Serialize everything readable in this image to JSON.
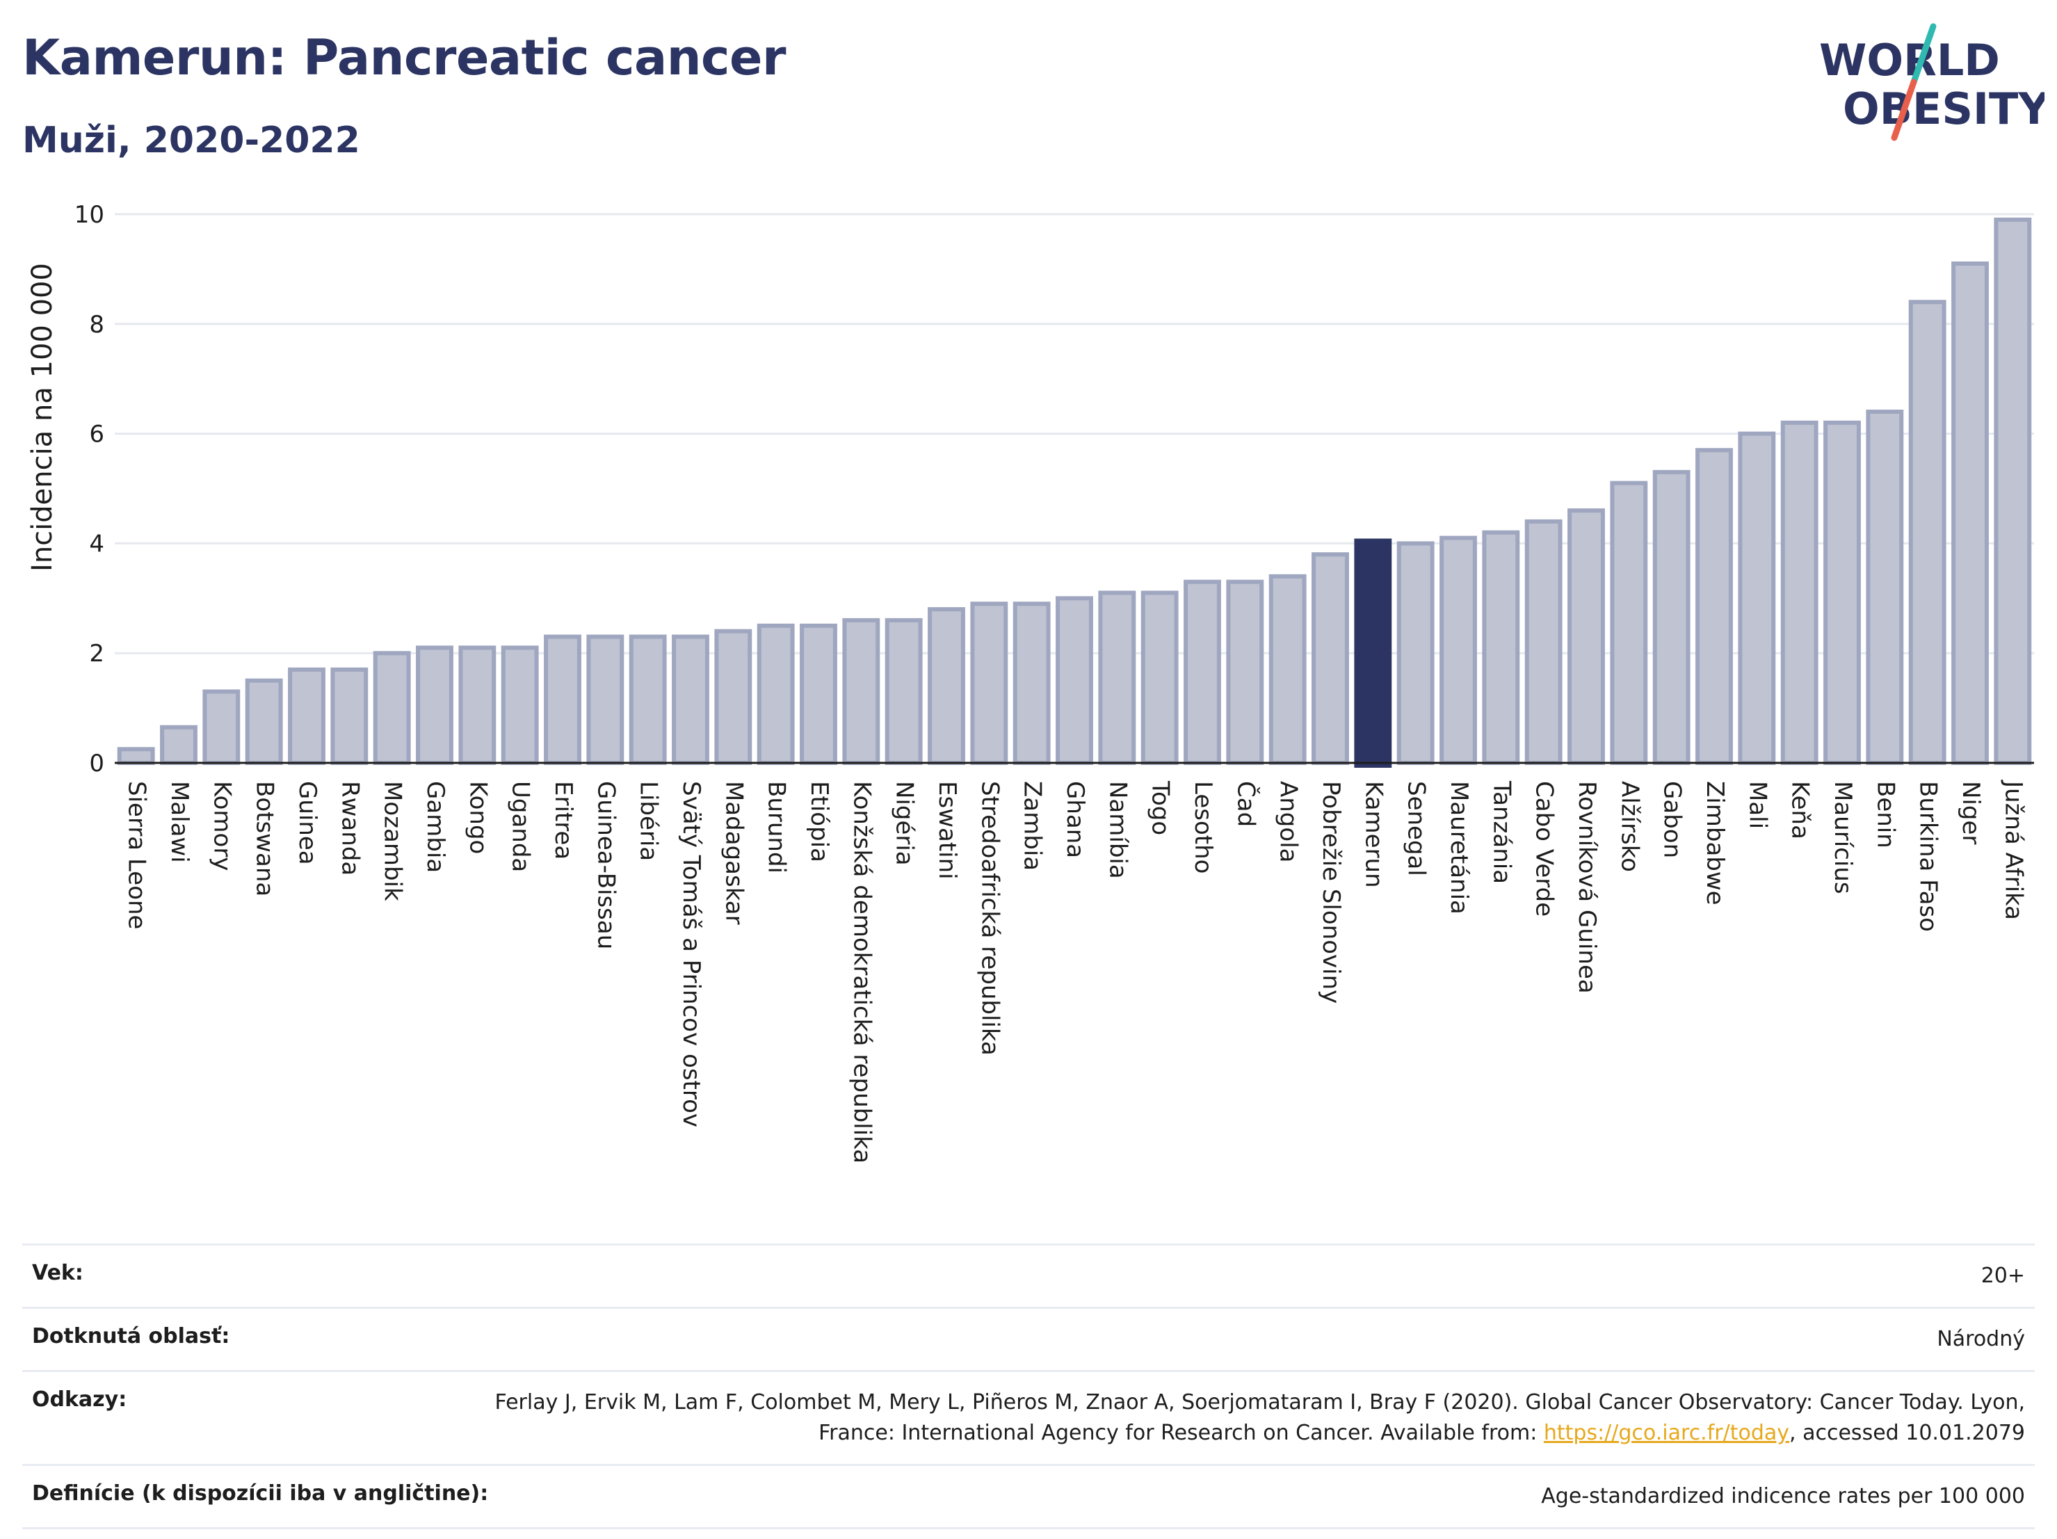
{
  "header": {
    "title": "Kamerun: Pancreatic cancer",
    "subtitle": "Muži, 2020-2022"
  },
  "logo": {
    "line1": "WORLD",
    "line2": "OBESITY",
    "accent_teal": "#2fb9b0",
    "accent_red": "#e8604c",
    "text_color": "#2b3462"
  },
  "colors": {
    "bar_default": "#bfc3d2",
    "bar_default_stroke": "#9fa6bf",
    "bar_highlight": "#2b3462",
    "grid": "#e6e8ef",
    "axis": "#1d1d1d"
  },
  "chart_data": {
    "type": "bar",
    "ylabel": "Incidencia na 100 000",
    "ylim": [
      0,
      10
    ],
    "yticks": [
      0,
      2,
      4,
      6,
      8,
      10
    ],
    "grid": true,
    "highlight": "Kamerun",
    "categories": [
      "Sierra Leone",
      "Malawi",
      "Komory",
      "Botswana",
      "Guinea",
      "Rwanda",
      "Mozambik",
      "Gambia",
      "Kongo",
      "Uganda",
      "Eritrea",
      "Guinea-Bissau",
      "Libéria",
      "Svätý Tomáš a Princov ostrov",
      "Madagaskar",
      "Burundi",
      "Etiópia",
      "Konžská demokratická republika",
      "Nigéria",
      "Eswatini",
      "Stredoafrická republika",
      "Zambia",
      "Ghana",
      "Namíbia",
      "Togo",
      "Lesotho",
      "Čad",
      "Angola",
      "Pobrežie Slonoviny",
      "Kamerun",
      "Senegal",
      "Mauretánia",
      "Tanzánia",
      "Cabo Verde",
      "Rovníková Guinea",
      "Alžírsko",
      "Gabon",
      "Zimbabwe",
      "Mali",
      "Keňa",
      "Maurícius",
      "Benin",
      "Burkina Faso",
      "Niger",
      "Južná Afrika"
    ],
    "values": [
      0.25,
      0.65,
      1.3,
      1.5,
      1.7,
      1.7,
      2.0,
      2.1,
      2.1,
      2.1,
      2.3,
      2.3,
      2.3,
      2.3,
      2.4,
      2.5,
      2.5,
      2.6,
      2.6,
      2.8,
      2.9,
      2.9,
      3.0,
      3.1,
      3.1,
      3.3,
      3.3,
      3.4,
      3.8,
      4.05,
      4.0,
      4.1,
      4.2,
      4.4,
      4.6,
      5.1,
      5.3,
      5.7,
      6.0,
      6.2,
      6.2,
      6.4,
      8.4,
      9.1,
      9.9
    ]
  },
  "meta": {
    "age_label": "Vek:",
    "age_value": "20+",
    "area_label": "Dotknutá oblasť:",
    "area_value": "Národný",
    "refs_label": "Odkazy:",
    "refs_text": "Ferlay J, Ervik M, Lam F, Colombet M, Mery L, Piñeros M, Znaor A, Soerjomataram I, Bray F (2020). Global Cancer Observatory: Cancer Today. Lyon, France: International Agency for Research on Cancer. Available from: ",
    "refs_link": "https://gco.iarc.fr/today",
    "refs_suffix": ", accessed 10.01.2079",
    "def_label": "Definície (k dispozícii iba v angličtine):",
    "def_value": "Age-standardized indicence rates per 100 000"
  }
}
